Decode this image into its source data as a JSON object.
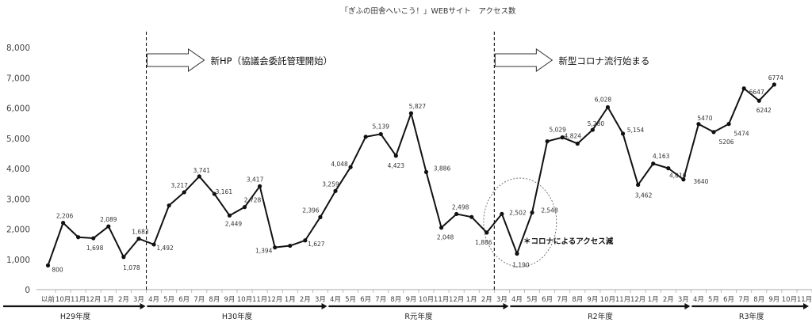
{
  "chart_data": {
    "type": "line",
    "title": "「ぎふの田舎へいこう！」WEBサイト　アクセス数",
    "xlabel": "",
    "ylabel": "",
    "ylim": [
      0,
      8000
    ],
    "yticks": [
      "0",
      "1,000",
      "2,000",
      "3,000",
      "4,000",
      "5,000",
      "6,000",
      "7,000",
      "8,000"
    ],
    "grid": false,
    "categories": [
      "以前",
      "10月",
      "11月",
      "12月",
      "1月",
      "2月",
      "3月",
      "4月",
      "5月",
      "6月",
      "7月",
      "8月",
      "9月",
      "10月",
      "11月",
      "12月",
      "1月",
      "2月",
      "3月",
      "4月",
      "5月",
      "6月",
      "7月",
      "8月",
      "9月",
      "10月",
      "11月",
      "12月",
      "1月",
      "2月",
      "3月",
      "4月",
      "5月",
      "6月",
      "7月",
      "8月",
      "9月",
      "10月",
      "11月",
      "12月",
      "1月",
      "2月",
      "3月",
      "4月",
      "5月",
      "6月",
      "7月",
      "8月",
      "9月",
      "10月",
      "11月"
    ],
    "values": [
      800,
      2206,
      1733,
      1698,
      2089,
      1078,
      1683,
      1492,
      2780,
      3217,
      3741,
      3161,
      2449,
      2728,
      3417,
      1394,
      1450,
      1627,
      2396,
      3259,
      4048,
      5050,
      5139,
      4423,
      5827,
      3886,
      2048,
      2498,
      2400,
      1886,
      2502,
      1190,
      2548,
      4900,
      5029,
      4824,
      5280,
      6028,
      5154,
      3462,
      4163,
      4010,
      3640,
      5470,
      5206,
      5474,
      6647,
      6242,
      6774,
      null,
      null
    ],
    "data_labels": [
      {
        "i": 0,
        "text": "800"
      },
      {
        "i": 1,
        "text": "2,206"
      },
      {
        "i": 3,
        "text": "1,698"
      },
      {
        "i": 4,
        "text": "2,089"
      },
      {
        "i": 5,
        "text": "1,078"
      },
      {
        "i": 6,
        "text": "1,683"
      },
      {
        "i": 7,
        "text": "1,492"
      },
      {
        "i": 9,
        "text": "3,217"
      },
      {
        "i": 10,
        "text": "3,741"
      },
      {
        "i": 11,
        "text": "3,161"
      },
      {
        "i": 12,
        "text": "2,449"
      },
      {
        "i": 13,
        "text": "2,728"
      },
      {
        "i": 14,
        "text": "3,417"
      },
      {
        "i": 15,
        "text": "1,394"
      },
      {
        "i": 17,
        "text": "1,627"
      },
      {
        "i": 18,
        "text": "2,396"
      },
      {
        "i": 19,
        "text": "3,259"
      },
      {
        "i": 20,
        "text": "4,048"
      },
      {
        "i": 22,
        "text": "5,139"
      },
      {
        "i": 23,
        "text": "4,423"
      },
      {
        "i": 24,
        "text": "5,827"
      },
      {
        "i": 25,
        "text": "3,886"
      },
      {
        "i": 26,
        "text": "2,048"
      },
      {
        "i": 27,
        "text": "2,498"
      },
      {
        "i": 29,
        "text": "1,886"
      },
      {
        "i": 30,
        "text": "2,502"
      },
      {
        "i": 31,
        "text": "1,190"
      },
      {
        "i": 32,
        "text": "2,548"
      },
      {
        "i": 34,
        "text": "5,029"
      },
      {
        "i": 35,
        "text": "4,824"
      },
      {
        "i": 36,
        "text": "5,280"
      },
      {
        "i": 37,
        "text": "6,028"
      },
      {
        "i": 38,
        "text": "5,154"
      },
      {
        "i": 39,
        "text": "3,462"
      },
      {
        "i": 40,
        "text": "4,163"
      },
      {
        "i": 41,
        "text": "4,010"
      },
      {
        "i": 42,
        "text": "3640"
      },
      {
        "i": 43,
        "text": "5470"
      },
      {
        "i": 44,
        "text": "5206"
      },
      {
        "i": 45,
        "text": "5474"
      },
      {
        "i": 46,
        "text": "6647"
      },
      {
        "i": 47,
        "text": "6242"
      },
      {
        "i": 48,
        "text": "6774"
      }
    ],
    "fiscal_years": [
      {
        "label": "H29年度",
        "from": 0,
        "to": 6
      },
      {
        "label": "H30年度",
        "from": 7,
        "to": 18
      },
      {
        "label": "R元年度",
        "from": 19,
        "to": 30
      },
      {
        "label": "R2年度",
        "from": 31,
        "to": 42
      },
      {
        "label": "R3年度",
        "from": 43,
        "to": 50
      }
    ],
    "annotations": [
      {
        "text": "新HP（協議会委託管理開始）",
        "at": 6.5
      },
      {
        "text": "新型コロナ流行始まる",
        "at": 29.5
      },
      {
        "text": "＊コロナによるアクセス減",
        "near": 31
      }
    ],
    "colors": {
      "line": "#111111",
      "text": "#333333",
      "axis": "#999999"
    }
  }
}
